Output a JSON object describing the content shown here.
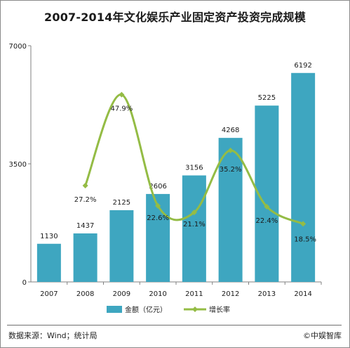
{
  "page": {
    "title": "2007-2014年文化娱乐产业固定资产投资完成规模",
    "source": "数据来源：Wind；统计局",
    "brand": "©中娱智库"
  },
  "colors": {
    "bar": "#3ea6c0",
    "line": "#94bc45",
    "axis": "#808080",
    "text": "#1a1a1a"
  },
  "chart_data": {
    "type": "bar",
    "categories": [
      "2007",
      "2008",
      "2009",
      "2010",
      "2011",
      "2012",
      "2013",
      "2014"
    ],
    "series": [
      {
        "name": "金额（亿元）",
        "type": "bar",
        "axis": "left",
        "values": [
          1130,
          1437,
          2125,
          2606,
          3156,
          4268,
          5225,
          6192
        ]
      },
      {
        "name": "增长率",
        "type": "line",
        "axis": "right",
        "unit": "%",
        "values": [
          null,
          27.2,
          47.9,
          22.6,
          21.1,
          35.2,
          22.4,
          18.5
        ],
        "labels": [
          "",
          "27.2%",
          "47.9%",
          "22.6%",
          "21.1%",
          "35.2%",
          "22.4%",
          "18.5%"
        ]
      }
    ],
    "y_ticks": [
      "0",
      "3500",
      "7000"
    ],
    "ylim": [
      0,
      7000
    ],
    "legend": [
      "金额（亿元）",
      "增长率"
    ],
    "legend_position": "bottom",
    "grid": false
  }
}
